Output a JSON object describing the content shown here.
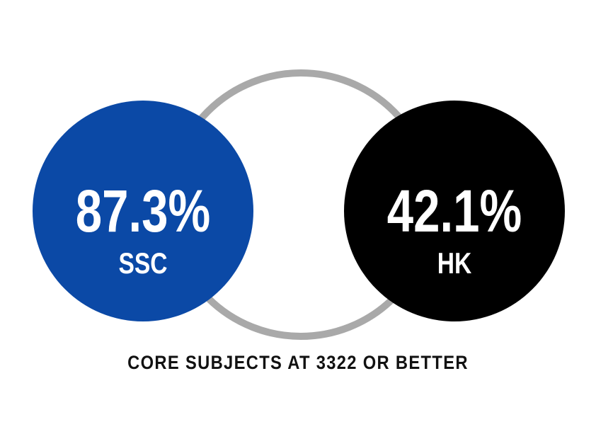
{
  "stats": [
    {
      "figure": "87.3%",
      "label": "SSC",
      "color": "#0b49a6"
    },
    {
      "figure": "42.1%",
      "label": "HK",
      "color": "#000000"
    }
  ],
  "caption": "CORE SUBJECTS AT 3322 OR BETTER"
}
